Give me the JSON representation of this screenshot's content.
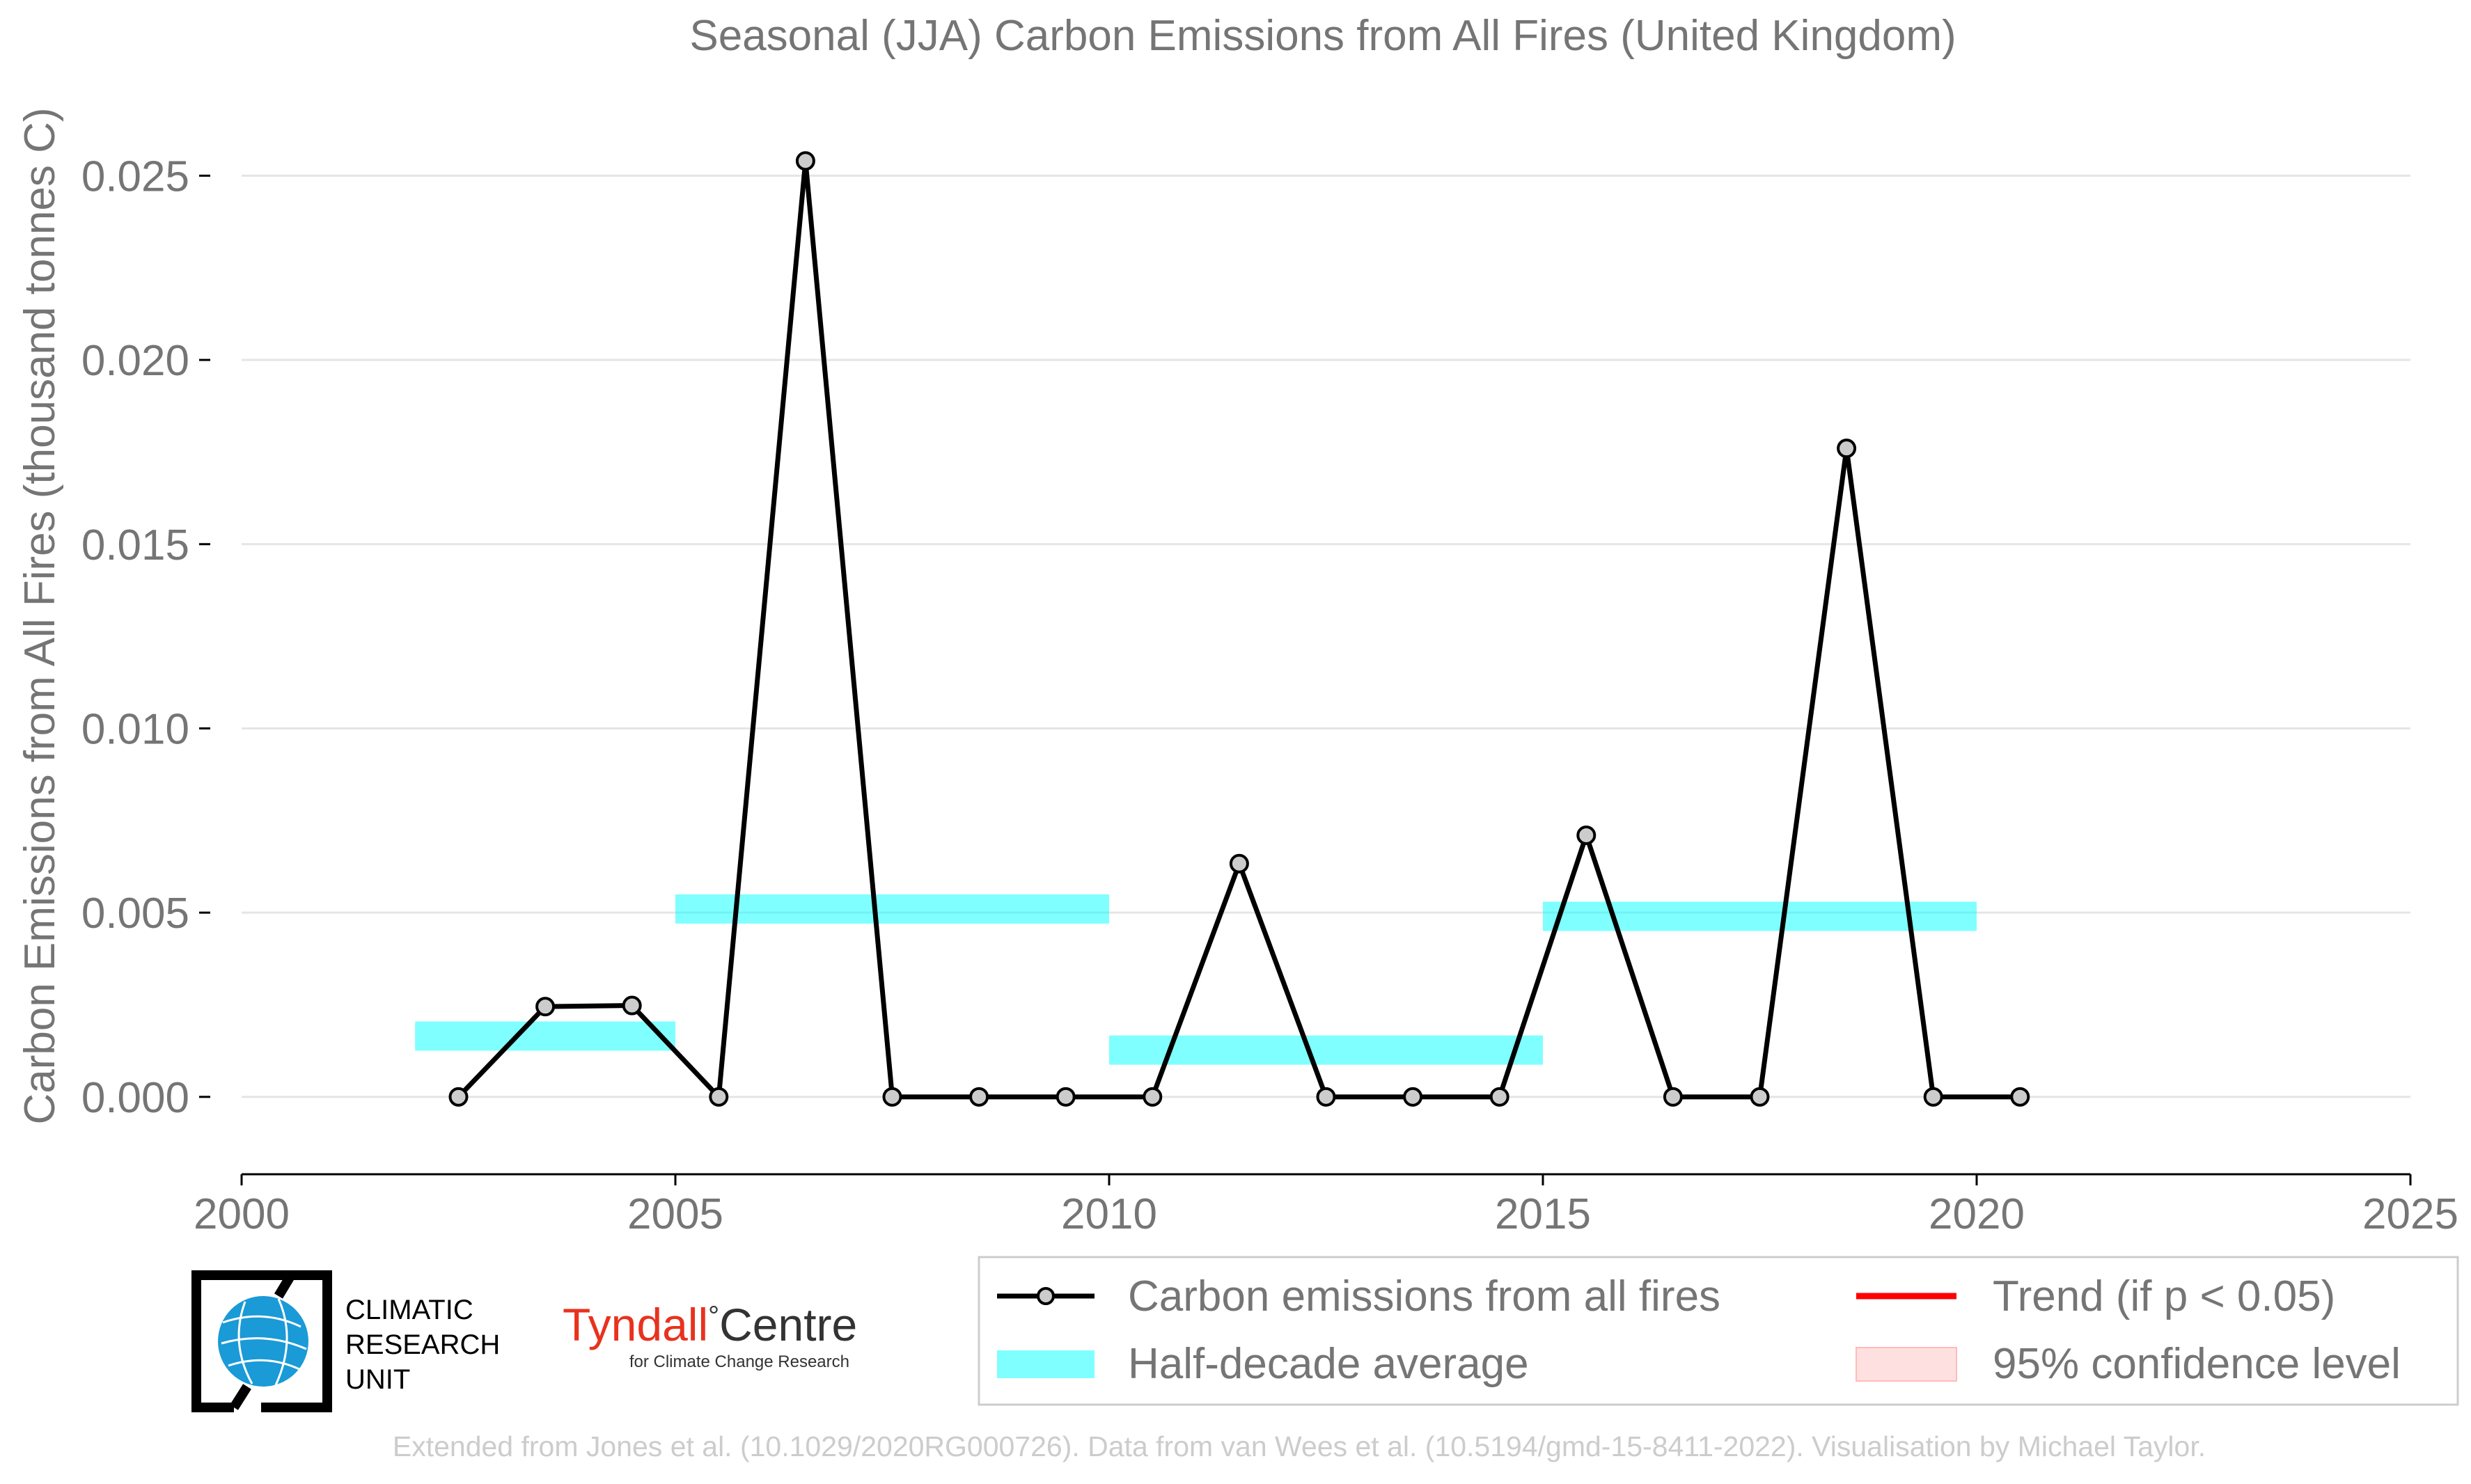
{
  "chart_data": {
    "type": "line",
    "title": "Seasonal (JJA) Carbon Emissions from All Fires (United Kingdom)",
    "ylabel": "Carbon Emissions from All Fires (thousand tonnes C)",
    "xlabel": "",
    "xlim": [
      2000,
      2025
    ],
    "ylim": [
      -0.0021,
      0.0265
    ],
    "x_ticks": [
      2000,
      2005,
      2010,
      2015,
      2020,
      2025
    ],
    "x_tick_labels": [
      "2000",
      "2005",
      "2010",
      "2015",
      "2020",
      "2025"
    ],
    "y_ticks": [
      0,
      0.005,
      0.01,
      0.015,
      0.02,
      0.025
    ],
    "y_tick_labels": [
      "0.000",
      "0.005",
      "0.010",
      "0.015",
      "0.020",
      "0.025"
    ],
    "grid": "horizontal",
    "series": [
      {
        "name": "Carbon emissions from all fires",
        "color": "#000000",
        "marker_fill": "#cccccc",
        "x": [
          2002.5,
          2003.5,
          2004.5,
          2005.5,
          2006.5,
          2007.5,
          2008.5,
          2009.5,
          2010.5,
          2011.5,
          2012.5,
          2013.5,
          2014.5,
          2015.5,
          2016.5,
          2017.5,
          2018.5,
          2019.5,
          2020.5
        ],
        "y": [
          0.0,
          0.00245,
          0.00248,
          0.0,
          0.0254,
          0.0,
          0.0,
          0.0,
          0.0,
          0.00633,
          0.0,
          0.0,
          0.0,
          0.0071,
          0.0,
          0.0,
          0.0176,
          0.0,
          0.0
        ]
      }
    ],
    "half_decade_average": {
      "name": "Half-decade average",
      "color": "#00ffff",
      "segments": [
        {
          "x0": 2002,
          "x1": 2005,
          "y": 0.00165
        },
        {
          "x0": 2005,
          "x1": 2010,
          "y": 0.0051
        },
        {
          "x0": 2010,
          "x1": 2015,
          "y": 0.00127
        },
        {
          "x0": 2015,
          "x1": 2020,
          "y": 0.0049
        }
      ]
    },
    "legend": {
      "placement": "bottom-right",
      "entries": [
        {
          "label": "Carbon emissions from all fires",
          "kind": "line-marker",
          "color": "#000000"
        },
        {
          "label": "Trend (if p < 0.05)",
          "kind": "line",
          "color": "#ff0000"
        },
        {
          "label": "Half-decade average",
          "kind": "band",
          "color": "#00ffff"
        },
        {
          "label": "95% confidence level",
          "kind": "band",
          "color": "#ffcccc"
        }
      ]
    },
    "footer": "Extended from Jones et al. (10.1029/2020RG000726). Data from van Wees et al. (10.5194/gmd-15-8411-2022). Visualisation by Michael Taylor."
  },
  "logos": {
    "cru": {
      "lines": [
        "CLIMATIC",
        "RESEARCH",
        "UNIT"
      ],
      "icon": "globe-icon",
      "color": "#1a9ad6"
    },
    "tyndall": {
      "name": "Tyndall",
      "degree": "°",
      "centre": "Centre",
      "subtitle": "for Climate Change Research",
      "name_color": "#e8321e"
    }
  },
  "colors": {
    "text": "#757575",
    "grid": "#e5e5e5",
    "axis": "#000000",
    "footer": "#cccccc",
    "legend_border": "#cccccc"
  }
}
